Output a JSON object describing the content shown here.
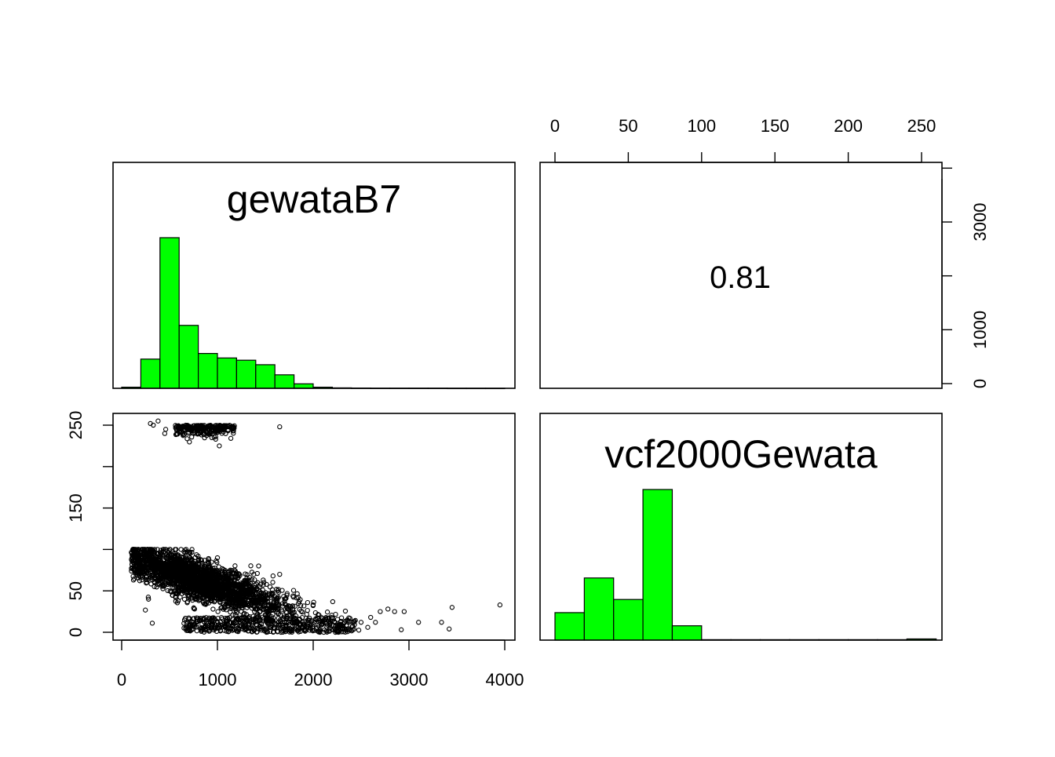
{
  "chart_data": {
    "type": "scatter",
    "layout": "pairs",
    "variables": [
      "gewataB7",
      "vcf2000Gewata"
    ],
    "correlation": {
      "label": "0.81",
      "value": 0.81
    },
    "histogram_color": "#00ff00",
    "gewataB7_histogram": {
      "bin_edges": [
        0,
        200,
        400,
        600,
        800,
        1000,
        1200,
        1400,
        1600,
        1800,
        2000,
        2200,
        2400,
        2600,
        2800,
        3000,
        3200,
        3400,
        3600,
        3800,
        4000
      ],
      "counts": [
        0.5,
        13,
        67,
        28,
        15.5,
        13.5,
        12.5,
        10.5,
        6,
        2,
        0.5,
        0.2,
        0.1,
        0.05,
        0.05,
        0.05,
        0.05,
        0.02,
        0.02,
        0.02
      ]
    },
    "vcf2000Gewata_histogram": {
      "bin_edges": [
        0,
        20,
        40,
        60,
        80,
        100,
        120,
        140,
        160,
        180,
        200,
        220,
        240,
        260
      ],
      "counts": [
        11.5,
        26,
        17,
        63,
        6,
        0.2,
        0.2,
        0.2,
        0.2,
        0.2,
        0.2,
        0.2,
        0.5
      ]
    },
    "x_axis": {
      "variable": "gewataB7",
      "range": [
        0,
        4000
      ],
      "ticks": [
        "0",
        "1000",
        "2000",
        "3000",
        "4000"
      ]
    },
    "y_axis": {
      "variable": "vcf2000Gewata",
      "range": [
        0,
        255
      ],
      "ticks": [
        "0",
        "50",
        "150",
        "250"
      ]
    },
    "top_axis": {
      "range": [
        0,
        255
      ],
      "ticks": [
        "0",
        "50",
        "100",
        "150",
        "200",
        "250"
      ]
    },
    "right_axis": {
      "range": [
        0,
        4000
      ],
      "ticks": [
        "0",
        "1000",
        "3000"
      ]
    },
    "scatter_outliers": [
      [
        3950,
        33
      ],
      [
        3450,
        30
      ],
      [
        3420,
        4
      ],
      [
        3340,
        12
      ],
      [
        3100,
        12
      ],
      [
        2950,
        25
      ],
      [
        2920,
        3
      ],
      [
        2850,
        25
      ],
      [
        2780,
        28
      ],
      [
        2700,
        25
      ],
      [
        2650,
        12
      ],
      [
        2600,
        18
      ],
      [
        2570,
        6
      ],
      [
        2500,
        12
      ],
      [
        1650,
        70
      ],
      [
        1580,
        68
      ],
      [
        1430,
        80
      ],
      [
        1000,
        90
      ],
      [
        1650,
        248
      ],
      [
        1020,
        225
      ],
      [
        450,
        240
      ],
      [
        330,
        250
      ],
      [
        380,
        255
      ],
      [
        300,
        252
      ],
      [
        460,
        245
      ],
      [
        280,
        40
      ],
      [
        320,
        11
      ]
    ]
  }
}
